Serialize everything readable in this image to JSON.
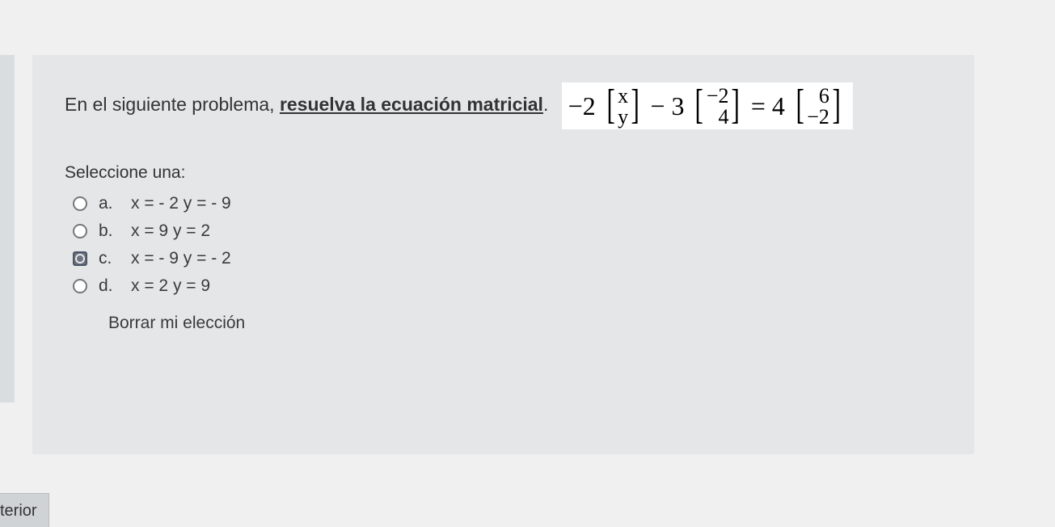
{
  "question": {
    "stem_prefix": "En el siguiente problema, ",
    "stem_underlined": "resuelva la ecuación matricial",
    "stem_suffix": ".",
    "equation": {
      "coef1": "−2",
      "vec1": [
        "x",
        "y"
      ],
      "op1": "−",
      "coef2": "3",
      "vec2": [
        "−2",
        "4"
      ],
      "op2": "=",
      "coef3": "4",
      "vec3": [
        "6",
        "−2"
      ]
    }
  },
  "select_prompt": "Seleccione una:",
  "options": [
    {
      "letter": "a.",
      "text": "x = - 2   y =   - 9",
      "selected": false
    },
    {
      "letter": "b.",
      "text": "x = 9    y =   2",
      "selected": false
    },
    {
      "letter": "c.",
      "text": "x = - 9   y =   - 2",
      "selected": true
    },
    {
      "letter": "d.",
      "text": "x = 2    y =   9",
      "selected": false
    }
  ],
  "clear_label": "Borrar mi elección",
  "prev_button": "terior",
  "colors": {
    "page_bg": "#f0f0f0",
    "box_bg": "rgba(225,228,230,.8)",
    "text": "#2a2a2a",
    "eq_bg": "#ffffff",
    "radio_border": "#777777",
    "radio_selected_bg": "#6b7280"
  }
}
